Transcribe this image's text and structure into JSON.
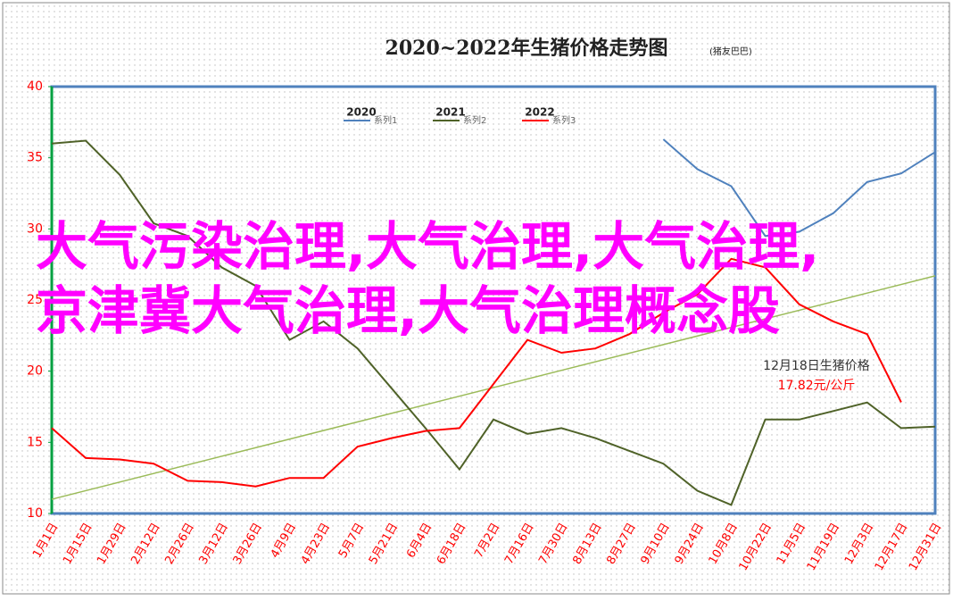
{
  "chart_data": {
    "type": "line",
    "title": "2020~2022年生猪价格走势图",
    "subtitle": "(猪友巴巴)",
    "categories": [
      "1月1日",
      "1月15日",
      "1月29日",
      "2月12日",
      "2月26日",
      "3月12日",
      "3月26日",
      "4月9日",
      "4月23日",
      "5月7日",
      "5月21日",
      "6月4日",
      "6月18日",
      "7月2日",
      "7月16日",
      "7月30日",
      "8月13日",
      "8月27日",
      "9月10日",
      "9月24日",
      "10月8日",
      "10月22日",
      "11月5日",
      "11月19日",
      "12月3日",
      "12月17日",
      "12月31日"
    ],
    "series": [
      {
        "year": "2020",
        "name": "系列1",
        "color": "#4f81bd",
        "values": [
          null,
          null,
          null,
          null,
          null,
          null,
          null,
          null,
          null,
          null,
          null,
          null,
          null,
          null,
          null,
          null,
          null,
          null,
          36.3,
          34.2,
          33.0,
          29.5,
          29.8,
          31.1,
          33.3,
          33.9,
          35.4
        ]
      },
      {
        "year": "2021",
        "name": "系列2",
        "color": "#4f6228",
        "values": [
          36.0,
          36.2,
          33.8,
          30.4,
          29.5,
          27.3,
          26.0,
          22.2,
          23.5,
          21.6,
          18.8,
          16.0,
          13.1,
          16.6,
          15.6,
          16.0,
          15.3,
          14.4,
          13.5,
          11.6,
          10.6,
          16.6,
          16.6,
          17.2,
          17.8,
          16.0,
          16.1
        ]
      },
      {
        "year": "2022",
        "name": "系列3",
        "color": "#ff0000",
        "values": [
          16.0,
          13.9,
          13.8,
          13.5,
          12.3,
          12.2,
          11.9,
          12.5,
          12.5,
          14.7,
          15.3,
          15.8,
          16.0,
          19.1,
          22.2,
          21.3,
          21.6,
          22.6,
          24.1,
          25.4,
          27.9,
          27.3,
          24.7,
          23.5,
          22.6,
          17.82,
          null
        ]
      }
    ],
    "trendline": {
      "color": "#9bbb59",
      "values": [
        11.0,
        26.7
      ]
    },
    "ylim": [
      10,
      40
    ],
    "yticks": [
      10,
      15,
      20,
      25,
      30,
      35,
      40
    ],
    "grid": false,
    "legend": "top",
    "annotations": [
      "12月18日生猪价格",
      "17.82元/公斤"
    ],
    "overlay": "大气污染治理,大气治理,大气治理,京津冀大气治理,大气治理概念股"
  }
}
